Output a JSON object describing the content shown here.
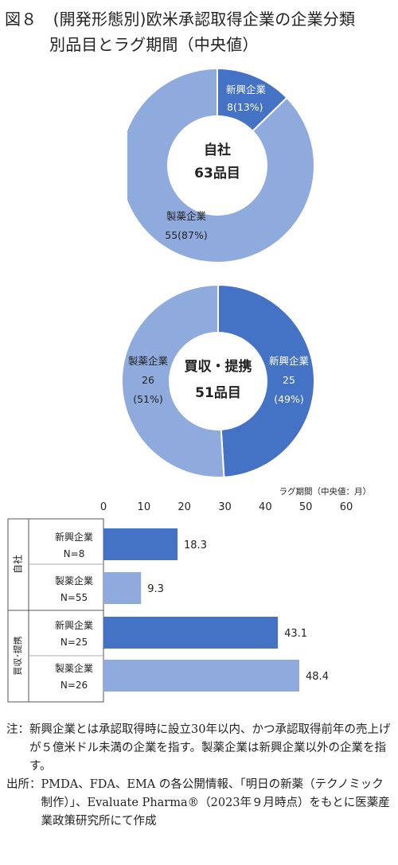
{
  "title": {
    "line1": "図８　(開発形態別)欧米承認取得企業の企業分類",
    "line2": "別品目とラグ期間（中央値）"
  },
  "colors": {
    "dark": "#4472c4",
    "light": "#8faadc",
    "text": "#222222"
  },
  "chart_data": [
    {
      "type": "pie",
      "variant": "donut",
      "center_label": [
        "自社",
        "63品目"
      ],
      "slices": [
        {
          "name": "新興企業",
          "value": 8,
          "label": "8(13%)",
          "color": "#4472c4"
        },
        {
          "name": "製薬企業",
          "value": 55,
          "label": "55(87%)",
          "color": "#8faadc"
        }
      ]
    },
    {
      "type": "pie",
      "variant": "donut",
      "center_label": [
        "買収・提携",
        "51品目"
      ],
      "slices": [
        {
          "name": "新興企業",
          "value": 25,
          "label": "25",
          "pct": "(49%)",
          "color": "#4472c4"
        },
        {
          "name": "製薬企業",
          "value": 26,
          "label": "26",
          "pct": "(51%)",
          "color": "#8faadc"
        }
      ]
    },
    {
      "type": "bar",
      "orientation": "horizontal",
      "axis_title": "ラグ期間（中央値：月）",
      "xlim": [
        0,
        60
      ],
      "ticks": [
        0,
        10,
        20,
        30,
        40,
        50,
        60
      ],
      "grid": false,
      "groups": [
        {
          "name": "自社",
          "bars": [
            {
              "name": "新興企業",
              "n": "N=8",
              "value": 18.3,
              "value_label": "18.3",
              "color": "#4472c4"
            },
            {
              "name": "製薬企業",
              "n": "N=55",
              "value": 9.3,
              "value_label": "9.3",
              "color": "#8faadc"
            }
          ]
        },
        {
          "name": "買収･提携",
          "bars": [
            {
              "name": "新興企業",
              "n": "N=25",
              "value": 43.1,
              "value_label": "43.1",
              "color": "#4472c4"
            },
            {
              "name": "製薬企業",
              "n": "N=26",
              "value": 48.4,
              "value_label": "48.4",
              "color": "#8faadc"
            }
          ]
        }
      ]
    }
  ],
  "notes": [
    {
      "label": "注：",
      "text": "新興企業とは承認取得時に設立30年以内、かつ承認取得前年の売上げが５億米ドル未満の企業を指す。製薬企業は新興企業以外の企業を指す。"
    },
    {
      "label": "出所：",
      "text": "PMDA、FDA、EMA の各公開情報、「明日の新薬（テクノミック制作）」、Evaluate Pharma®（2023年９月時点）をもとに医薬産業政策研究所にて作成"
    }
  ]
}
